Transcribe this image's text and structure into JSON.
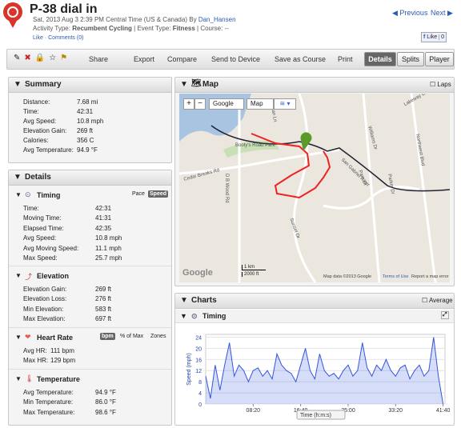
{
  "header": {
    "title": "P-38 dial in",
    "date": "Sat, 2013 Aug 3 2:39 PM Central Time (US & Canada)",
    "by": "By",
    "author": "Dan_Hansen",
    "activity_type_label": "Activity Type:",
    "activity_type": "Recumbent Cycling",
    "event_type_label": "Event Type:",
    "event_type": "Fitness",
    "course_label": "Course:",
    "course": "--",
    "like": "Like",
    "comments": "Comments (0)",
    "previous": "Previous",
    "next": "Next",
    "fb_like": "Like",
    "fb_count": "0"
  },
  "toolbar": {
    "buttons": [
      "Share",
      "Export",
      "Compare",
      "Send to Device",
      "Save as Course",
      "Print"
    ],
    "tabs": [
      "Details",
      "Splits",
      "Player"
    ]
  },
  "summary": {
    "title": "Summary",
    "rows": [
      [
        "Distance:",
        "7.68 mi"
      ],
      [
        "Time:",
        "42:31"
      ],
      [
        "Avg Speed:",
        "10.8 mph"
      ],
      [
        "Elevation Gain:",
        "269 ft"
      ],
      [
        "Calories:",
        "356 C"
      ],
      [
        "Avg Temperature:",
        "94.9 °F"
      ]
    ]
  },
  "details": {
    "title": "Details",
    "sections": [
      {
        "title": "Timing",
        "options": [
          "Pace",
          "Speed"
        ],
        "rows": [
          [
            "Time:",
            "42:31"
          ],
          [
            "Moving Time:",
            "41:31"
          ],
          [
            "Elapsed Time:",
            "42:35"
          ],
          [
            "Avg Speed:",
            "10.8 mph"
          ],
          [
            "Avg Moving Speed:",
            "11.1 mph"
          ],
          [
            "Max Speed:",
            "25.7 mph"
          ]
        ]
      },
      {
        "title": "Elevation",
        "rows": [
          [
            "Elevation Gain:",
            "269 ft"
          ],
          [
            "Elevation Loss:",
            "276 ft"
          ],
          [
            "Min Elevation:",
            "583 ft"
          ],
          [
            "Max Elevation:",
            "697 ft"
          ]
        ]
      },
      {
        "title": "Heart Rate",
        "options": [
          "bpm",
          "% of Max",
          "Zones"
        ],
        "rows": [
          [
            "Avg HR:",
            "111 bpm"
          ],
          [
            "Max HR:",
            "129 bpm"
          ]
        ]
      },
      {
        "title": "Temperature",
        "rows": [
          [
            "Avg Temperature:",
            "94.9 °F"
          ],
          [
            "Min Temperature:",
            "86.0 °F"
          ],
          [
            "Max Temperature:",
            "98.6 °F"
          ]
        ]
      }
    ]
  },
  "map": {
    "title": "Map",
    "laps": "Laps",
    "map_type": "Google",
    "view": "Map",
    "scale_km": "1 km",
    "scale_ft": "2000 ft",
    "logo": "Google",
    "attribution": "Map data ©2013 Google",
    "terms": "Terms of Use",
    "report": "Report a map error",
    "labels": [
      "Booty's Road Park",
      "Cedar Breaks Rd",
      "D B Wood Rd",
      "Pecan Ln",
      "Lakeway Dr",
      "Williams Dr",
      "Northwest Blvd",
      "Parker Dr",
      "Pam Dr",
      "San Gabriel River",
      "Sunset Dr"
    ]
  },
  "charts": {
    "title": "Charts",
    "average": "Average",
    "chart": {
      "type": "line",
      "title": "Timing",
      "y_label": "Speed (mph)",
      "x_label": "Time (h:m:s)",
      "ylim": [
        0,
        25
      ],
      "yticks": [
        0,
        4,
        8,
        12,
        16,
        20,
        24
      ],
      "xlim": [
        0,
        2520
      ],
      "xticks": [
        {
          "value": 500,
          "label": "08:20"
        },
        {
          "value": 1000,
          "label": "16:40"
        },
        {
          "value": 1500,
          "label": "25:00"
        },
        {
          "value": 2000,
          "label": "33:20"
        },
        {
          "value": 2500,
          "label": "41:40"
        }
      ],
      "color": "#3355dd",
      "x": [
        0,
        50,
        100,
        150,
        200,
        250,
        300,
        350,
        400,
        450,
        500,
        550,
        600,
        650,
        700,
        750,
        800,
        850,
        900,
        950,
        1000,
        1050,
        1100,
        1150,
        1200,
        1250,
        1300,
        1350,
        1400,
        1450,
        1500,
        1550,
        1600,
        1650,
        1700,
        1750,
        1800,
        1850,
        1900,
        1950,
        2000,
        2050,
        2100,
        2150,
        2200,
        2250,
        2300,
        2350,
        2400,
        2450,
        2500
      ],
      "values": [
        10,
        2,
        14,
        5,
        14,
        22,
        10,
        14,
        12,
        8,
        12,
        13,
        10,
        12,
        9,
        18,
        14,
        12,
        11,
        8,
        14,
        20,
        12,
        9,
        18,
        12,
        10,
        11,
        9,
        12,
        14,
        10,
        12,
        22,
        13,
        10,
        14,
        12,
        16,
        12,
        10,
        13,
        14,
        9,
        12,
        14,
        10,
        12,
        24,
        10,
        0
      ]
    }
  }
}
